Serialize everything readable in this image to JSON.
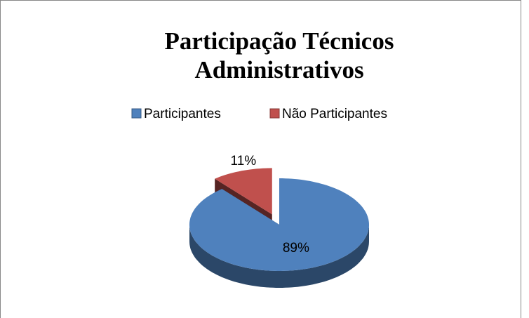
{
  "chart_data": {
    "type": "pie3d",
    "title": "Participação Técnicos Administrativos",
    "categories": [
      "Participantes",
      "Não Participantes"
    ],
    "values": [
      89,
      11
    ],
    "value_labels": [
      "89%",
      "11%"
    ],
    "colors": [
      "#4f81bd",
      "#c0504d"
    ],
    "exploded": [
      false,
      true
    ],
    "legend": "top"
  }
}
